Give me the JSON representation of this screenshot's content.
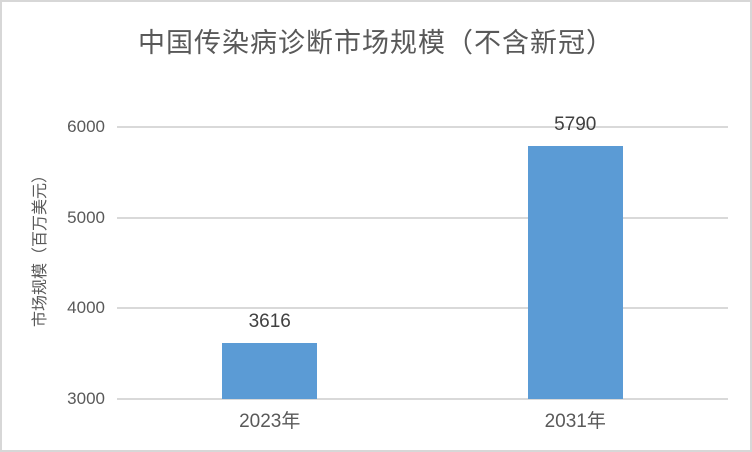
{
  "chart_data": {
    "type": "bar",
    "title": "中国传染病诊断市场规模（不含新冠）",
    "ylabel": "市场规模（百万美元）",
    "xlabel": "",
    "categories": [
      "2023年",
      "2031年"
    ],
    "values": [
      3616,
      5790
    ],
    "value_labels": [
      "3616",
      "5790"
    ],
    "ylim": [
      3000,
      6000
    ],
    "yticks": [
      3000,
      4000,
      5000,
      6000
    ],
    "ytick_labels": [
      "3000",
      "4000",
      "5000",
      "6000"
    ],
    "grid": "horizontal-major",
    "legend": "none",
    "colors": {
      "bar": "#5B9BD5",
      "gridline": "#D9D9D9",
      "title_text": "#595959",
      "axis_text": "#595959",
      "value_label_text": "#404040",
      "frame_border": "#D7D7D7",
      "background": "#FFFFFF"
    }
  }
}
